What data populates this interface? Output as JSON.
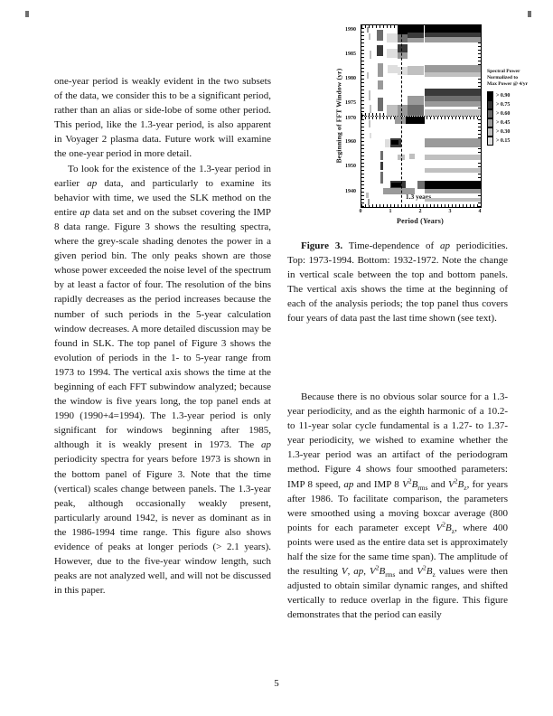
{
  "page": {
    "number": "5"
  },
  "columns": {
    "left": [
      {
        "indent": false,
        "runs": [
          {
            "t": "one-year period is weakly evident in the two subsets of the data, we consider this to be a significant period, rather than an alias or side-lobe of some other period. This period, like the 1.3-year period, is also apparent in Voyager 2 plasma data. Future work will examine the one-year period in more detail."
          }
        ]
      },
      {
        "indent": true,
        "runs": [
          {
            "t": "To look for the existence of the 1.3-year period in earlier "
          },
          {
            "t": "ap",
            "i": 1
          },
          {
            "t": " data, and particularly to examine its behavior with time, we used the SLK method on the entire "
          },
          {
            "t": "ap",
            "i": 1
          },
          {
            "t": " data set and on the subset covering the IMP 8 data range. Figure 3 shows the resulting spectra, where the grey-scale shading denotes the power in a given period bin. The only peaks shown are those whose power exceeded the noise level of the spectrum by at least a factor of four. The resolution of the bins rapidly decreases as the period increases because the number of such periods in the 5-year calculation window decreases. A more detailed discussion may be found in SLK. The top panel of Figure 3 shows the evolution of periods in the 1- to 5-year range from 1973 to 1994. The vertical axis shows the time at the beginning of each FFT subwindow analyzed; because the window is five years long, the top panel ends at 1990 (1990+4=1994). The 1.3-year period is only significant for windows beginning after 1985, although it is weakly present in 1973. The "
          },
          {
            "t": "ap",
            "i": 1
          },
          {
            "t": " periodicity spectra for years before 1973 is shown in the bottom panel of Figure 3. Note that the time (vertical) scales change between panels. The 1.3-year peak, although occasionally weakly present, particularly around 1942, is never as dominant as in the 1986-1994 time range. This figure also shows evidence of peaks at longer periods (> 2.1 years). However, due to the five-year window length, such peaks are not analyzed well, and will not be discussed in this paper."
          }
        ]
      }
    ],
    "right": [
      {
        "indent": true,
        "runs": [
          {
            "t": "Because there is no obvious solar source for a 1.3-year periodicity, and as the eighth harmonic of a 10.2- to 11-year solar cycle fundamental is a 1.27- to 1.37-year periodicity, we wished to examine whether the 1.3-year period was an artifact of the periodogram method. Figure 4 shows four smoothed parameters: IMP 8 speed, "
          },
          {
            "t": "ap",
            "i": 1
          },
          {
            "t": " and IMP 8 "
          },
          {
            "t": "V",
            "i": 1
          },
          {
            "t": "2",
            "sup": 1
          },
          {
            "t": "B",
            "i": 1
          },
          {
            "t": "rms",
            "sub": 1
          },
          {
            "t": " and "
          },
          {
            "t": "V",
            "i": 1
          },
          {
            "t": "2",
            "sup": 1
          },
          {
            "t": "B",
            "i": 1
          },
          {
            "t": "z",
            "sub": 1
          },
          {
            "t": ", for years after 1986. To facilitate comparison, the parameters were smoothed using a moving boxcar average (800 points for each parameter except "
          },
          {
            "t": "V",
            "i": 1
          },
          {
            "t": "2",
            "sup": 1
          },
          {
            "t": "B",
            "i": 1
          },
          {
            "t": "z",
            "sub": 1
          },
          {
            "t": ", where 400 points were used as the entire data set is approximately half the size for the same time span). The amplitude of the resulting "
          },
          {
            "t": "V",
            "i": 1
          },
          {
            "t": ", "
          },
          {
            "t": "ap",
            "i": 1
          },
          {
            "t": ", "
          },
          {
            "t": "V",
            "i": 1
          },
          {
            "t": "2",
            "sup": 1
          },
          {
            "t": "B",
            "i": 1
          },
          {
            "t": "rms",
            "sub": 1
          },
          {
            "t": " and "
          },
          {
            "t": "V",
            "i": 1
          },
          {
            "t": "2",
            "sup": 1
          },
          {
            "t": "B",
            "i": 1
          },
          {
            "t": "z",
            "sub": 1
          },
          {
            "t": " values were then adjusted to obtain similar dynamic ranges, and shifted vertically to reduce overlap in the figure. This figure demonstrates that the period can easily"
          }
        ]
      }
    ]
  },
  "figure": {
    "caption": {
      "indent": true,
      "runs": [
        {
          "t": "Figure 3.",
          "b": 1
        },
        {
          "t": "  Time-dependence of "
        },
        {
          "t": "ap",
          "i": 1
        },
        {
          "t": " periodicities. Top: 1973-1994. Bottom: 1932-1972. Note the change in vertical scale between the top and bottom panels. The vertical axis shows the time at the beginning of each of the analysis periods; the top panel thus covers four years of data past the last time shown (see text)."
        }
      ]
    }
  },
  "chart_data": {
    "type": "heatmap",
    "title": "",
    "xlabel": "Period (Years)",
    "ylabel": "Beginning of FFT Window (yr)",
    "x_range": [
      0,
      4
    ],
    "x_ticks": [
      "0",
      "1",
      "2",
      "3",
      "4"
    ],
    "grid": false,
    "dashed_line_x_years": 1.3,
    "dashed_line_frac": 33.3,
    "dashed_line_label": "1.3 years",
    "shade_colors": {
      "1": "#dedede",
      "2": "#c0c0c0",
      "3": "#9a9a9a",
      "4": "#6e6e6e",
      "5": "#3a3a3a",
      "6": "#000000"
    },
    "legend": {
      "title_lines": [
        "Spectral Power",
        "Normalized to",
        "Max Power @ 4/yr"
      ],
      "entries": [
        {
          "label": "> 0.90",
          "color": "#000000"
        },
        {
          "label": "> 0.75",
          "color": "#333333"
        },
        {
          "label": "> 0.60",
          "color": "#666666"
        },
        {
          "label": "> 0.45",
          "color": "#999999"
        },
        {
          "label": "> 0.30",
          "color": "#bbbbbb"
        },
        {
          "label": "> 0.15",
          "color": "#dddddd"
        }
      ]
    },
    "panels": [
      {
        "name": "top",
        "years": "1973-1994",
        "y_ticks": [
          {
            "label": "1990",
            "pos": 6
          },
          {
            "label": "1985",
            "pos": 33
          },
          {
            "label": "1980",
            "pos": 60
          },
          {
            "label": "1975",
            "pos": 87
          }
        ],
        "bands": [
          [
            4.5,
            2,
            1.5,
            6,
            3
          ],
          [
            6,
            9,
            1.5,
            7,
            2
          ],
          [
            6.5,
            28,
            1.5,
            9,
            2
          ],
          [
            4.5,
            52,
            1.5,
            7,
            2
          ],
          [
            6,
            72,
            1.5,
            11,
            2
          ],
          [
            6.5,
            88,
            1.5,
            9,
            2
          ],
          [
            13,
            5,
            5,
            12,
            4
          ],
          [
            13,
            22,
            5,
            12,
            5
          ],
          [
            14,
            42,
            4,
            15,
            3
          ],
          [
            14,
            61,
            4,
            10,
            3
          ],
          [
            14,
            80,
            4,
            15,
            4
          ],
          [
            21,
            9,
            9,
            10,
            1
          ],
          [
            21,
            26,
            9,
            10,
            1
          ],
          [
            22,
            44,
            8,
            9,
            1
          ],
          [
            21,
            88,
            9,
            12,
            2
          ],
          [
            30,
            0,
            9,
            10,
            6
          ],
          [
            30,
            10,
            9,
            9,
            4
          ],
          [
            30,
            21,
            9,
            9,
            5
          ],
          [
            30,
            30,
            9,
            7,
            3
          ],
          [
            30,
            46,
            9,
            9,
            1
          ],
          [
            30,
            88,
            9,
            12,
            3
          ],
          [
            39,
            0,
            13,
            8,
            6
          ],
          [
            39,
            8,
            13,
            6,
            5
          ],
          [
            39,
            14,
            13,
            5,
            3
          ],
          [
            39,
            45,
            13,
            10,
            2
          ],
          [
            39,
            78,
            13,
            10,
            3
          ],
          [
            39,
            88,
            13,
            12,
            4
          ],
          [
            53,
            0,
            47,
            8,
            6
          ],
          [
            53,
            8,
            47,
            5,
            5
          ],
          [
            53,
            13,
            47,
            6,
            3
          ],
          [
            53,
            44,
            47,
            8,
            3
          ],
          [
            53,
            52,
            47,
            5,
            2
          ],
          [
            53,
            70,
            47,
            8,
            5
          ],
          [
            53,
            78,
            47,
            6,
            4
          ],
          [
            53,
            84,
            47,
            6,
            3
          ],
          [
            53,
            93,
            47,
            7,
            2
          ]
        ]
      },
      {
        "name": "bottom",
        "years": "1932-1972",
        "y_ticks": [
          {
            "label": "1970",
            "pos": 3
          },
          {
            "label": "1960",
            "pos": 29
          },
          {
            "label": "1950",
            "pos": 56
          },
          {
            "label": "1940",
            "pos": 84
          }
        ],
        "bands": [
          [
            6,
            4,
            1.5,
            8,
            2
          ],
          [
            6.5,
            18,
            1.5,
            6,
            1
          ],
          [
            4,
            84,
            2,
            6,
            2
          ],
          [
            5,
            91,
            2,
            7,
            3
          ],
          [
            16,
            38,
            2.5,
            10,
            4
          ],
          [
            16,
            50,
            2.5,
            9,
            5
          ],
          [
            16,
            61,
            2.5,
            13,
            4
          ],
          [
            28,
            0,
            9,
            8,
            3
          ],
          [
            37,
            0,
            16,
            8,
            6
          ],
          [
            20,
            25,
            4,
            9,
            1
          ],
          [
            24,
            24,
            9,
            10,
            5
          ],
          [
            25,
            26,
            6,
            5,
            6
          ],
          [
            53,
            24,
            47,
            10,
            3
          ],
          [
            30,
            42,
            6,
            6,
            2
          ],
          [
            40,
            41,
            5,
            6,
            2
          ],
          [
            53,
            42,
            47,
            6,
            2
          ],
          [
            53,
            57,
            47,
            5,
            2
          ],
          [
            24,
            71,
            13,
            9,
            5
          ],
          [
            25,
            73,
            8,
            5,
            6
          ],
          [
            18,
            79,
            27,
            7,
            3
          ],
          [
            47,
            71,
            6,
            9,
            4
          ],
          [
            53,
            71,
            47,
            9,
            6
          ],
          [
            53,
            80,
            47,
            5,
            3
          ],
          [
            53,
            90,
            47,
            4,
            2
          ]
        ]
      }
    ]
  }
}
